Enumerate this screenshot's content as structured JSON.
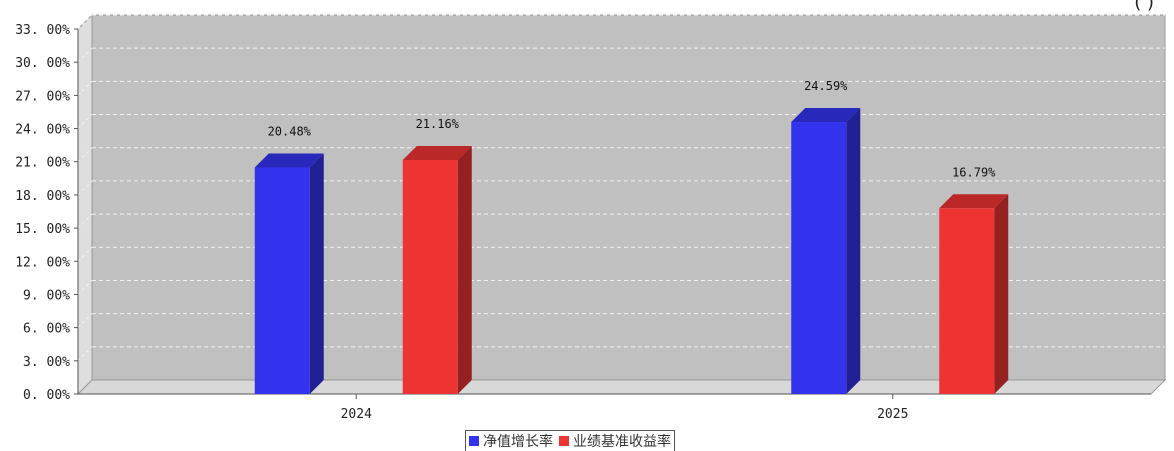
{
  "chart_data": {
    "type": "bar",
    "categories": [
      "2024",
      "2025"
    ],
    "series": [
      {
        "name": "净值增长率",
        "color": "#3333ee",
        "values": [
          20.48,
          24.59
        ],
        "labels": [
          "20.48%",
          "24.59%"
        ]
      },
      {
        "name": "业绩基准收益率",
        "color": "#ee3333",
        "values": [
          21.16,
          16.79
        ],
        "labels": [
          "21.16%",
          "16.79%"
        ]
      }
    ],
    "ylim": [
      0,
      33
    ],
    "yticks": [
      0,
      3,
      6,
      9,
      12,
      15,
      18,
      21,
      24,
      27,
      30,
      33
    ],
    "ytick_labels": [
      "0. 00%",
      "3. 00%",
      "6. 00%",
      "9. 00%",
      "12. 00%",
      "15. 00%",
      "18. 00%",
      "21. 00%",
      "24. 00%",
      "27. 00%",
      "30. 00%",
      "33. 00%"
    ],
    "grid": true,
    "legend_position": "bottom-center",
    "title": "",
    "xlabel": "",
    "ylabel": "",
    "background_color": "#c0c0c0",
    "corner_text": "(                    )"
  }
}
